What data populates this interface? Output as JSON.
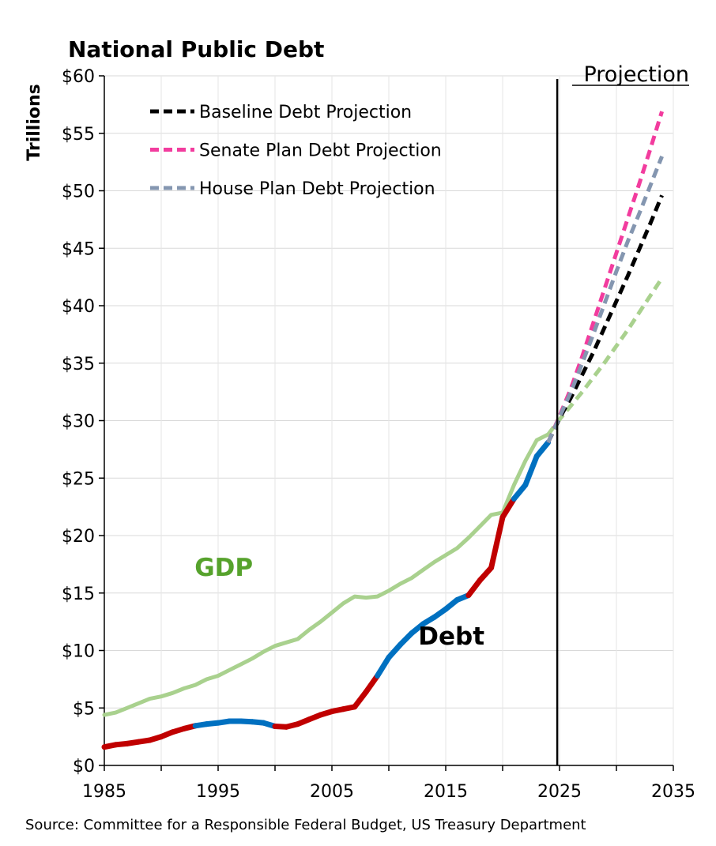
{
  "chart_data": {
    "type": "line",
    "title": "National Public Debt",
    "ylabel": "Trillions",
    "xlabel": "",
    "xlim": [
      1985,
      2035
    ],
    "ylim": [
      0,
      60
    ],
    "x_ticks": [
      "1985",
      "1995",
      "2005",
      "2015",
      "2025",
      "2035"
    ],
    "x_tick_values": [
      1985,
      1995,
      2005,
      2015,
      2025,
      2035
    ],
    "y_ticks": [
      "$0",
      "$5",
      "$10",
      "$15",
      "$20",
      "$25",
      "$30",
      "$35",
      "$40",
      "$45",
      "$50",
      "$55",
      "$60"
    ],
    "y_tick_values": [
      0,
      5,
      10,
      15,
      20,
      25,
      30,
      35,
      40,
      45,
      50,
      55,
      60
    ],
    "grid": true,
    "legend_position": "top-left",
    "projection_divider_x": 2024.8,
    "projection_label": "Projection",
    "source": "Source: Committee for a Responsible Federal Budget, US Treasury Department",
    "series_labels": [
      {
        "text": "GDP",
        "x": 1995.5,
        "y": 16.5,
        "color": "#56a22c"
      },
      {
        "text": "Debt",
        "x": 2015.5,
        "y": 10.5,
        "color": "#000000"
      }
    ],
    "series": [
      {
        "name": "GDP",
        "style": "solid",
        "color": "#a9d18e",
        "x": [
          1985,
          1986,
          1987,
          1988,
          1989,
          1990,
          1991,
          1992,
          1993,
          1994,
          1995,
          1996,
          1997,
          1998,
          1999,
          2000,
          2001,
          2002,
          2003,
          2004,
          2005,
          2006,
          2007,
          2008,
          2009,
          2010,
          2011,
          2012,
          2013,
          2014,
          2015,
          2016,
          2017,
          2018,
          2019,
          2020,
          2021,
          2022,
          2023,
          2024
        ],
        "values": [
          4.4,
          4.6,
          5.0,
          5.4,
          5.8,
          6.0,
          6.3,
          6.7,
          7.0,
          7.5,
          7.8,
          8.3,
          8.8,
          9.3,
          9.9,
          10.4,
          10.7,
          11.0,
          11.8,
          12.5,
          13.3,
          14.1,
          14.7,
          14.6,
          14.7,
          15.2,
          15.8,
          16.3,
          17.0,
          17.7,
          18.3,
          18.9,
          19.8,
          20.8,
          21.8,
          22.0,
          24.4,
          26.5,
          28.3,
          28.8
        ]
      },
      {
        "name": "Debt",
        "style": "solid",
        "segment_colors": {
          "increase": "#c00000",
          "steady": "#0070c0"
        },
        "x": [
          1985,
          1986,
          1987,
          1988,
          1989,
          1990,
          1991,
          1992,
          1993,
          1994,
          1995,
          1996,
          1997,
          1998,
          1999,
          2000,
          2001,
          2002,
          2003,
          2004,
          2005,
          2006,
          2007,
          2008,
          2009,
          2010,
          2011,
          2012,
          2013,
          2014,
          2015,
          2016,
          2017,
          2018,
          2019,
          2020,
          2021,
          2022,
          2023,
          2024
        ],
        "values": [
          1.6,
          1.8,
          1.9,
          2.05,
          2.2,
          2.5,
          2.9,
          3.2,
          3.45,
          3.6,
          3.7,
          3.85,
          3.85,
          3.8,
          3.7,
          3.4,
          3.35,
          3.6,
          4.0,
          4.4,
          4.7,
          4.9,
          5.1,
          6.4,
          7.8,
          9.4,
          10.5,
          11.5,
          12.3,
          12.9,
          13.6,
          14.4,
          14.8,
          16.1,
          17.2,
          21.6,
          23.2,
          24.4,
          26.9,
          28.1
        ],
        "segment_types": [
          "increase",
          "increase",
          "increase",
          "increase",
          "increase",
          "increase",
          "increase",
          "increase",
          "steady",
          "steady",
          "steady",
          "steady",
          "steady",
          "steady",
          "steady",
          "increase",
          "increase",
          "increase",
          "increase",
          "increase",
          "increase",
          "increase",
          "increase",
          "increase",
          "steady",
          "steady",
          "steady",
          "steady",
          "steady",
          "steady",
          "steady",
          "steady",
          "increase",
          "increase",
          "increase",
          "increase",
          "steady",
          "steady",
          "steady"
        ]
      },
      {
        "name": "GDP projection",
        "style": "dashed",
        "color": "#a9d18e",
        "x": [
          2024,
          2025,
          2026,
          2027,
          2028,
          2029,
          2030,
          2031,
          2032,
          2033,
          2034
        ],
        "values": [
          28.8,
          30.1,
          31.3,
          32.5,
          33.8,
          35.1,
          36.5,
          37.9,
          39.4,
          40.9,
          42.4
        ]
      },
      {
        "name": "Baseline Debt Projection",
        "style": "dashed",
        "color": "#000000",
        "x": [
          2024,
          2025,
          2026,
          2027,
          2028,
          2029,
          2030,
          2031,
          2032,
          2033,
          2034
        ],
        "values": [
          28.1,
          30.2,
          32.0,
          34.0,
          36.0,
          38.2,
          40.4,
          42.6,
          44.9,
          47.2,
          49.6
        ]
      },
      {
        "name": "Senate Plan Debt Projection",
        "style": "dashed",
        "color": "#f23c9e",
        "x": [
          2024,
          2025,
          2026,
          2027,
          2028,
          2029,
          2030,
          2031,
          2032,
          2033,
          2034
        ],
        "values": [
          28.1,
          30.4,
          32.8,
          35.6,
          38.6,
          41.6,
          44.6,
          47.6,
          50.6,
          53.7,
          56.9
        ]
      },
      {
        "name": "House Plan Debt Projection",
        "style": "dashed",
        "color": "#8496b0",
        "x": [
          2024,
          2025,
          2026,
          2027,
          2028,
          2029,
          2030,
          2031,
          2032,
          2033,
          2034
        ],
        "values": [
          28.1,
          30.3,
          32.5,
          35.0,
          37.6,
          40.3,
          43.0,
          45.6,
          48.0,
          50.5,
          53.0
        ]
      }
    ],
    "legend": [
      {
        "label": "Baseline Debt Projection",
        "color": "#000000"
      },
      {
        "label": "Senate Plan Debt Projection",
        "color": "#f23c9e"
      },
      {
        "label": "House Plan Debt Projection",
        "color": "#8496b0"
      }
    ]
  }
}
